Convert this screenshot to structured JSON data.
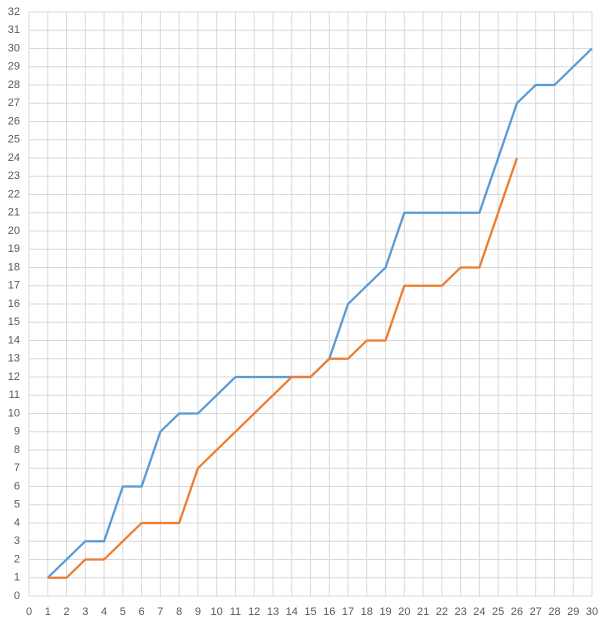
{
  "chart_data": {
    "type": "line",
    "x": [
      1,
      2,
      3,
      4,
      5,
      6,
      7,
      8,
      9,
      10,
      11,
      12,
      13,
      14,
      15,
      16,
      17,
      18,
      19,
      20,
      21,
      22,
      23,
      24,
      25,
      26,
      27,
      28,
      29,
      30
    ],
    "series": [
      {
        "color": "#5b9bd5",
        "values": [
          1,
          2,
          3,
          3,
          6,
          6,
          9,
          10,
          10,
          11,
          12,
          12,
          12,
          12,
          12,
          13,
          16,
          17,
          18,
          21,
          21,
          21,
          21,
          21,
          24,
          27,
          28,
          28,
          29,
          30
        ]
      },
      {
        "color": "#ed7d31",
        "values": [
          1,
          1,
          2,
          2,
          3,
          4,
          4,
          4,
          7,
          8,
          9,
          10,
          11,
          12,
          12,
          13,
          13,
          14,
          14,
          17,
          17,
          17,
          18,
          18,
          21,
          24,
          null,
          null,
          null,
          null
        ]
      }
    ],
    "xlim": [
      0,
      30
    ],
    "xticks": [
      0,
      1,
      2,
      3,
      4,
      5,
      6,
      7,
      8,
      9,
      10,
      11,
      12,
      13,
      14,
      15,
      16,
      17,
      18,
      19,
      20,
      21,
      22,
      23,
      24,
      25,
      26,
      27,
      28,
      29,
      30
    ],
    "ylim": [
      0,
      32
    ],
    "yticks": [
      0,
      1,
      2,
      3,
      4,
      5,
      6,
      7,
      8,
      9,
      10,
      11,
      12,
      13,
      14,
      15,
      16,
      17,
      18,
      19,
      20,
      21,
      22,
      23,
      24,
      25,
      26,
      27,
      28,
      29,
      30,
      31,
      32
    ],
    "grid": true
  }
}
